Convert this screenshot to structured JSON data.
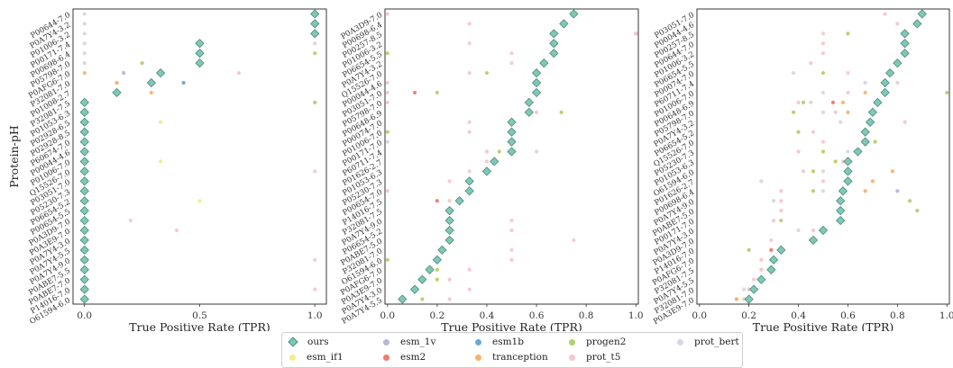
{
  "chart_data": [
    {
      "type": "scatter",
      "xlabel": "True Positive Rate (TPR)",
      "ylabel": "Protein-pH",
      "xlim": [
        -0.05,
        1.05
      ],
      "xticks": [
        "0.0",
        "0.5",
        "1.0"
      ],
      "xtick_values": [
        0,
        0.5,
        1.0
      ],
      "categories": [
        "P00644-7.0",
        "P0A7Y4-3.2",
        "P01006-3.2",
        "P00171-7.4",
        "P00698-6.4",
        "P05798-7.0",
        "P0AFG6-7.0",
        "P32081-7.0",
        "P01008-2.7",
        "P32081-7.5",
        "P01053-6.3",
        "P02928-6.5",
        "P02928-8.5",
        "P60674-7.0",
        "P00044-4.6",
        "P01006-7.0",
        "Q15526-7.0",
        "P03051-7.0",
        "P05230-7.3",
        "P06654-5.2",
        "P00654-5.5",
        "P0A3D9-7.0",
        "P0A3E9-7.0",
        "P0A7Y4-3.0",
        "P0A7Y4-5.5",
        "P0A7Y4-9.0",
        "P0ABE7-5.5",
        "P0ABE7-7.0",
        "P14016-7.0",
        "O61594-6.0"
      ],
      "series": [
        {
          "name": "ours",
          "values": [
            1.0,
            1.0,
            1.0,
            0.5,
            0.5,
            0.5,
            0.33,
            0.29,
            0.14,
            0,
            0,
            0,
            0,
            0,
            0,
            0,
            0,
            0,
            0,
            0,
            0,
            0,
            0,
            0,
            0,
            0,
            0,
            0,
            0,
            0
          ]
        },
        {
          "name": "esm_1v",
          "values": [
            null,
            null,
            null,
            null,
            null,
            null,
            0.17,
            null,
            null,
            null,
            null,
            null,
            null,
            null,
            null,
            null,
            null,
            null,
            null,
            null,
            null,
            null,
            null,
            null,
            null,
            null,
            null,
            null,
            null,
            null
          ]
        },
        {
          "name": "esm1b",
          "values": [
            null,
            null,
            null,
            null,
            null,
            null,
            null,
            0.43,
            null,
            null,
            null,
            null,
            null,
            null,
            null,
            null,
            null,
            null,
            null,
            null,
            null,
            null,
            null,
            null,
            null,
            null,
            null,
            null,
            null,
            null
          ]
        },
        {
          "name": "progen2",
          "values": [
            null,
            null,
            null,
            null,
            1.0,
            0.25,
            null,
            0.14,
            null,
            1.0,
            null,
            null,
            null,
            null,
            null,
            null,
            null,
            null,
            null,
            null,
            null,
            null,
            null,
            null,
            null,
            null,
            null,
            null,
            null,
            null
          ]
        },
        {
          "name": "prot_bert",
          "values": [
            0,
            0,
            0,
            0,
            0,
            0,
            null,
            null,
            null,
            null,
            null,
            null,
            null,
            null,
            null,
            null,
            null,
            null,
            null,
            null,
            null,
            null,
            null,
            null,
            null,
            null,
            null,
            null,
            null,
            null
          ]
        },
        {
          "name": "esm_if1",
          "values": [
            null,
            null,
            null,
            null,
            null,
            null,
            null,
            null,
            null,
            null,
            null,
            0.33,
            null,
            null,
            null,
            0.33,
            null,
            null,
            null,
            0.5,
            null,
            null,
            null,
            null,
            null,
            null,
            null,
            null,
            null,
            null
          ]
        },
        {
          "name": "tranception",
          "values": [
            null,
            null,
            null,
            null,
            null,
            null,
            0,
            0.14,
            0.29,
            null,
            null,
            null,
            null,
            null,
            null,
            null,
            null,
            null,
            null,
            null,
            null,
            null,
            null,
            null,
            null,
            null,
            null,
            null,
            null,
            null
          ]
        },
        {
          "name": "prot_t5",
          "values": [
            null,
            null,
            null,
            1.0,
            null,
            null,
            0.67,
            null,
            null,
            null,
            null,
            null,
            null,
            null,
            null,
            null,
            1.0,
            null,
            null,
            null,
            null,
            0.2,
            0.4,
            null,
            null,
            1.0,
            null,
            null,
            1.0,
            null
          ]
        }
      ]
    },
    {
      "type": "scatter",
      "xlabel": "True Positive Rate (TPR)",
      "ylabel": "",
      "xlim": [
        -0.01,
        1.01
      ],
      "xticks": [
        "0.0",
        "0.2",
        "0.4",
        "0.6",
        "0.8",
        "1.0"
      ],
      "xtick_values": [
        0,
        0.2,
        0.4,
        0.6,
        0.8,
        1.0
      ],
      "categories": [
        "P0A3D9-7.0",
        "P00698-6.4",
        "P00257-8.5",
        "P01006-3.2",
        "P06654-5.5",
        "P0A7Y4-3.2",
        "Q15526-7.0",
        "P00044-4.6",
        "P03051-7.0",
        "P05798-7.0",
        "P00648-6.9",
        "P00074-7.0",
        "P01006-7.0",
        "P00171-7.0",
        "P60711-7.4",
        "P01626-2.7",
        "P01053-6.3",
        "P05230-7.3",
        "P00654-7.0",
        "P14016-7.5",
        "P32081-7.5",
        "P0A7Y4-9.0",
        "P06654-5.2",
        "P0ABE7-5.0",
        "P32081-7.0",
        "O61594-6.0",
        "P0AFG6-7.0",
        "P0A3E9-7.0",
        "P0A7Y4-3.0",
        "P0A7Y4-5.5"
      ],
      "series": [
        {
          "name": "ours",
          "values": [
            0.75,
            0.71,
            0.67,
            0.67,
            0.67,
            0.63,
            0.6,
            0.6,
            0.6,
            0.57,
            0.57,
            0.5,
            0.5,
            0.5,
            0.5,
            0.43,
            0.4,
            0.33,
            0.33,
            0.29,
            0.25,
            0.25,
            0.25,
            0.25,
            0.22,
            0.2,
            0.17,
            0.14,
            0.11,
            0.06
          ]
        },
        {
          "name": "esm2",
          "values": [
            null,
            null,
            1.0,
            null,
            null,
            null,
            null,
            null,
            0.11,
            null,
            null,
            null,
            null,
            null,
            null,
            null,
            null,
            null,
            null,
            0.2,
            null,
            null,
            null,
            null,
            null,
            null,
            null,
            null,
            null,
            null
          ]
        },
        {
          "name": "progen2",
          "values": [
            null,
            null,
            null,
            null,
            0.0,
            null,
            0.4,
            null,
            0.2,
            null,
            0.7,
            null,
            0.0,
            null,
            0.45,
            null,
            null,
            null,
            null,
            null,
            null,
            null,
            null,
            null,
            null,
            0.0,
            0.2,
            0.2,
            null,
            0.14
          ]
        },
        {
          "name": "prot_t5",
          "values": [
            0.0,
            0.33,
            1.0,
            0.33,
            0.5,
            0.5,
            0.33,
            0.0,
            0.0,
            0.0,
            0.6,
            0.33,
            0.33,
            0.5,
            0.4,
            0.4,
            0.33,
            0.25,
            0.0,
            0.25,
            0.25,
            0.5,
            0.5,
            0.75,
            0.5,
            0.5,
            0.33,
            0.25,
            0.33,
            0.25
          ]
        },
        {
          "name": "prot_bert",
          "values": [
            null,
            null,
            null,
            null,
            null,
            null,
            null,
            null,
            null,
            null,
            null,
            null,
            null,
            0.0,
            0.6,
            null,
            null,
            null,
            null,
            null,
            null,
            null,
            null,
            null,
            null,
            null,
            null,
            null,
            null,
            null
          ]
        }
      ]
    },
    {
      "type": "scatter",
      "xlabel": "True Positive Rate (TPR)",
      "ylabel": "",
      "xlim": [
        -0.01,
        1.01
      ],
      "xticks": [
        "0.0",
        "0.2",
        "0.4",
        "0.6",
        "0.8",
        "1.0"
      ],
      "xtick_values": [
        0,
        0.2,
        0.4,
        0.6,
        0.8,
        1.0
      ],
      "categories": [
        "P03051-7.0",
        "P00044-4.6",
        "P00257-8.5",
        "P00644-7.0",
        "P01006-3.2",
        "P06654-5.5",
        "P00074-7.0",
        "P60711-7.4",
        "P01006-7.0",
        "P00648-6.9",
        "P05798-7.0",
        "P0A7Y4-3.2",
        "P06654-5.2",
        "Q15526-7.0",
        "P05230-7.3",
        "P01053-6.3",
        "O61594-6.0",
        "P01626-2.7",
        "P00698-6.4",
        "P0A7Y4-9.0",
        "P0ABE7-5.0",
        "P00171-7.0",
        "P0A7Y4-3.0",
        "P0A3D9-7.0",
        "P14016-7.0",
        "P0AFG6-7.0",
        "P32081-7.5",
        "P0A7Y4-5.5",
        "P32081-7.0",
        "P0A3E9-7.0"
      ],
      "series": [
        {
          "name": "ours",
          "values": [
            0.9,
            0.88,
            0.83,
            0.83,
            0.83,
            0.8,
            0.77,
            0.75,
            0.75,
            0.72,
            0.7,
            0.69,
            0.67,
            0.67,
            0.64,
            0.6,
            0.6,
            0.6,
            0.58,
            0.57,
            0.57,
            0.57,
            0.5,
            0.46,
            0.33,
            0.3,
            0.29,
            0.25,
            0.22,
            0.2
          ]
        },
        {
          "name": "progen2",
          "values": [
            null,
            null,
            0.6,
            0.83,
            null,
            null,
            0.5,
            null,
            1.0,
            0.42,
            0.38,
            null,
            0.4,
            0.71,
            0.5,
            0.55,
            0.46,
            0.6,
            0.46,
            0.85,
            0.88,
            0.33,
            0.5,
            0.45,
            0.2,
            0.3,
            0.25,
            0.25,
            0.2,
            0.2
          ]
        },
        {
          "name": "prot_t5",
          "values": [
            0.75,
            0.8,
            0.5,
            0.5,
            0.5,
            0.45,
            0.6,
            0.8,
            0.6,
            0.4,
            0.55,
            0.83,
            0.46,
            0.5,
            0.4,
            0.58,
            0.42,
            0.5,
            0.33,
            0.33,
            0.33,
            0.3,
            0.46,
            0.29,
            0.29,
            0.25,
            0.25,
            0.22,
            0.2,
            0.18
          ]
        },
        {
          "name": "prot_bert",
          "values": [
            null,
            null,
            null,
            null,
            null,
            null,
            0.38,
            0.67,
            0.5,
            0.45,
            0.5,
            0.57,
            null,
            null,
            0.6,
            null,
            0.5,
            0.25,
            0.5,
            0.3,
            null,
            null,
            0.4,
            null,
            null,
            null,
            null,
            null,
            0.18,
            0.15
          ]
        },
        {
          "name": "tranception",
          "values": [
            null,
            null,
            null,
            null,
            null,
            null,
            null,
            null,
            0.67,
            0.58,
            0.6,
            null,
            null,
            null,
            null,
            null,
            0.78,
            0.7,
            0.67,
            null,
            null,
            null,
            null,
            null,
            null,
            null,
            null,
            null,
            null,
            0.15
          ]
        },
        {
          "name": "esm2",
          "values": [
            null,
            null,
            null,
            null,
            null,
            null,
            null,
            null,
            null,
            0.54,
            null,
            null,
            null,
            null,
            null,
            null,
            null,
            null,
            null,
            null,
            null,
            null,
            null,
            null,
            0.29,
            null,
            null,
            null,
            null,
            null
          ]
        },
        {
          "name": "esm_1v",
          "values": [
            null,
            null,
            null,
            null,
            null,
            null,
            null,
            null,
            null,
            null,
            null,
            null,
            null,
            null,
            null,
            null,
            null,
            null,
            0.8,
            null,
            null,
            null,
            null,
            null,
            null,
            null,
            null,
            null,
            null,
            null
          ]
        }
      ]
    }
  ],
  "legend": [
    {
      "name": "ours",
      "color": "#7fc8b5",
      "marker": "diamond"
    },
    {
      "name": "esm_1v",
      "color": "#b6b6d8",
      "marker": "circle"
    },
    {
      "name": "esm1b",
      "color": "#6aa9d6",
      "marker": "circle"
    },
    {
      "name": "progen2",
      "color": "#b5cf6b",
      "marker": "circle"
    },
    {
      "name": "prot_bert",
      "color": "#d6d6e5",
      "marker": "circle"
    },
    {
      "name": "esm_if1",
      "color": "#f3ec8a",
      "marker": "circle"
    },
    {
      "name": "esm2",
      "color": "#ef7b6e",
      "marker": "circle"
    },
    {
      "name": "tranception",
      "color": "#f5b46a",
      "marker": "circle"
    },
    {
      "name": "prot_t5",
      "color": "#f7c6cf",
      "marker": "circle"
    }
  ]
}
